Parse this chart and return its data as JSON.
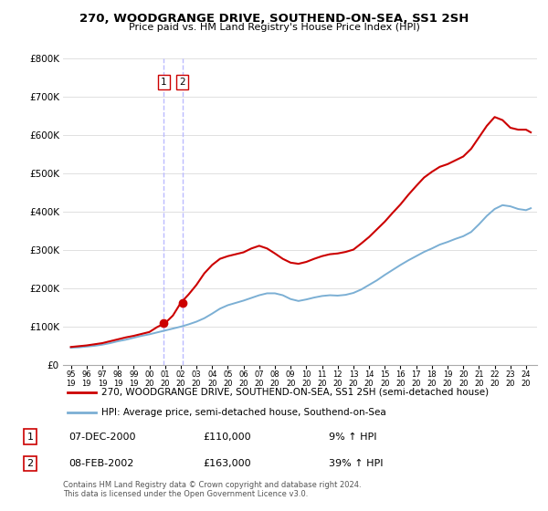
{
  "title": "270, WOODGRANGE DRIVE, SOUTHEND-ON-SEA, SS1 2SH",
  "subtitle": "Price paid vs. HM Land Registry's House Price Index (HPI)",
  "legend_line1": "270, WOODGRANGE DRIVE, SOUTHEND-ON-SEA, SS1 2SH (semi-detached house)",
  "legend_line2": "HPI: Average price, semi-detached house, Southend-on-Sea",
  "footer": "Contains HM Land Registry data © Crown copyright and database right 2024.\nThis data is licensed under the Open Government Licence v3.0.",
  "transaction1_label": "1",
  "transaction1_date": "07-DEC-2000",
  "transaction1_price": "£110,000",
  "transaction1_hpi": "9% ↑ HPI",
  "transaction2_label": "2",
  "transaction2_date": "08-FEB-2002",
  "transaction2_price": "£163,000",
  "transaction2_hpi": "39% ↑ HPI",
  "hpi_color": "#7bafd4",
  "price_color": "#cc0000",
  "vline_color": "#bbbbff",
  "ylim": [
    0,
    800000
  ],
  "yticks": [
    0,
    100000,
    200000,
    300000,
    400000,
    500000,
    600000,
    700000,
    800000
  ],
  "xlim_left": 1994.5,
  "xlim_right": 2024.7,
  "background": "#ffffff",
  "transaction1_year": 2000.92,
  "transaction2_year": 2002.1,
  "transaction1_value": 110000,
  "transaction2_value": 163000,
  "hpi_years": [
    1995,
    1995.5,
    1996,
    1996.5,
    1997,
    1997.5,
    1998,
    1998.5,
    1999,
    1999.5,
    2000,
    2000.5,
    2001,
    2001.5,
    2002,
    2002.5,
    2003,
    2003.5,
    2004,
    2004.5,
    2005,
    2005.5,
    2006,
    2006.5,
    2007,
    2007.5,
    2008,
    2008.5,
    2009,
    2009.5,
    2010,
    2010.5,
    2011,
    2011.5,
    2012,
    2012.5,
    2013,
    2013.5,
    2014,
    2014.5,
    2015,
    2015.5,
    2016,
    2016.5,
    2017,
    2017.5,
    2018,
    2018.5,
    2019,
    2019.5,
    2020,
    2020.5,
    2021,
    2021.5,
    2022,
    2022.5,
    2023,
    2023.5,
    2024,
    2024.3
  ],
  "hpi_values": [
    46000,
    47000,
    49000,
    51000,
    54000,
    58000,
    63000,
    67000,
    72000,
    77000,
    81000,
    86000,
    91000,
    96000,
    101000,
    107000,
    114000,
    123000,
    135000,
    148000,
    157000,
    163000,
    169000,
    176000,
    183000,
    188000,
    188000,
    183000,
    173000,
    168000,
    172000,
    177000,
    181000,
    183000,
    182000,
    184000,
    189000,
    198000,
    210000,
    222000,
    236000,
    249000,
    262000,
    274000,
    285000,
    296000,
    305000,
    315000,
    322000,
    330000,
    337000,
    348000,
    368000,
    390000,
    408000,
    418000,
    415000,
    408000,
    405000,
    410000
  ],
  "price_years": [
    1995,
    1995.5,
    1996,
    1996.5,
    1997,
    1997.5,
    1998,
    1998.5,
    1999,
    1999.5,
    2000,
    2000.5,
    2001,
    2001.5,
    2002,
    2002.5,
    2003,
    2003.5,
    2004,
    2004.5,
    2005,
    2005.5,
    2006,
    2006.5,
    2007,
    2007.5,
    2008,
    2008.5,
    2009,
    2009.5,
    2010,
    2010.5,
    2011,
    2011.5,
    2012,
    2012.5,
    2013,
    2013.5,
    2014,
    2014.5,
    2015,
    2015.5,
    2016,
    2016.5,
    2017,
    2017.5,
    2018,
    2018.5,
    2019,
    2019.5,
    2020,
    2020.5,
    2021,
    2021.5,
    2022,
    2022.5,
    2023,
    2023.5,
    2024,
    2024.3
  ],
  "price_values": [
    48000,
    50000,
    52000,
    55000,
    58000,
    63000,
    68000,
    73000,
    77000,
    82000,
    87000,
    100000,
    110000,
    130000,
    163000,
    185000,
    210000,
    240000,
    262000,
    278000,
    285000,
    290000,
    295000,
    305000,
    312000,
    305000,
    292000,
    278000,
    268000,
    265000,
    270000,
    278000,
    285000,
    290000,
    292000,
    296000,
    302000,
    318000,
    335000,
    355000,
    375000,
    398000,
    420000,
    445000,
    468000,
    490000,
    505000,
    518000,
    525000,
    535000,
    545000,
    565000,
    595000,
    625000,
    648000,
    640000,
    620000,
    615000,
    615000,
    608000
  ]
}
